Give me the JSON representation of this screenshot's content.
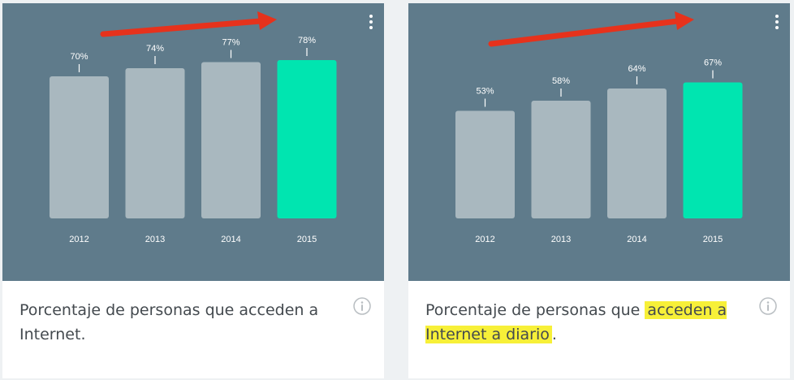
{
  "colors": {
    "panel": "#5f7b8b",
    "bar": "#a9b8bf",
    "highlight_bar": "#00e5b0",
    "arrow": "#e6321c",
    "label": "#ffffff",
    "caption_text": "#444a4f",
    "caption_highlight": "#f7f038"
  },
  "cards": [
    {
      "menu_icon": "more-vertical-icon",
      "info_icon": "info-circle-icon",
      "trend_arrow_icon": "trend-arrow-icon",
      "caption": {
        "part1": "Porcentaje de personas que acceden a",
        "part2": " Internet.",
        "highlight": "",
        "part3": ""
      }
    },
    {
      "menu_icon": "more-vertical-icon",
      "info_icon": "info-circle-icon",
      "trend_arrow_icon": "trend-arrow-icon",
      "caption": {
        "part1": "Porcentaje de personas que ",
        "part2": "",
        "highlight": "acceden a Internet a diario",
        "part3": "."
      }
    }
  ],
  "chart_data": [
    {
      "type": "bar",
      "categories": [
        "2012",
        "2013",
        "2014",
        "2015"
      ],
      "values": [
        70,
        74,
        77,
        78
      ],
      "labels": [
        "70%",
        "74%",
        "77%",
        "78%"
      ],
      "highlight_index": 3,
      "title": "",
      "xlabel": "",
      "ylabel": ""
    },
    {
      "type": "bar",
      "categories": [
        "2012",
        "2013",
        "2014",
        "2015"
      ],
      "values": [
        53,
        58,
        64,
        67
      ],
      "labels": [
        "53%",
        "58%",
        "64%",
        "67%"
      ],
      "highlight_index": 3,
      "title": "",
      "xlabel": "",
      "ylabel": ""
    }
  ]
}
